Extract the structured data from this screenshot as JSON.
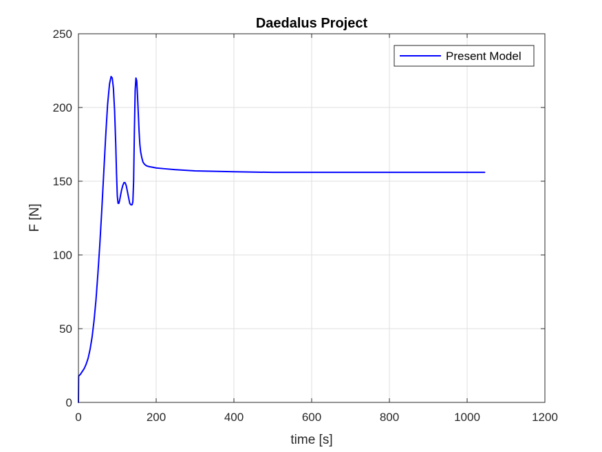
{
  "chart_data": {
    "type": "line",
    "title": "Daedalus Project",
    "xlabel": "time [s]",
    "ylabel": "F [N]",
    "xlim": [
      0,
      1200
    ],
    "ylim": [
      0,
      250
    ],
    "xticks": [
      0,
      200,
      400,
      600,
      800,
      1000,
      1200
    ],
    "yticks": [
      0,
      50,
      100,
      150,
      200,
      250
    ],
    "xtick_labels": [
      "0",
      "200",
      "400",
      "600",
      "800",
      "1000",
      "1200"
    ],
    "ytick_labels": [
      "0",
      "50",
      "100",
      "150",
      "200",
      "250"
    ],
    "grid": true,
    "legend_position": "top-right",
    "series": [
      {
        "name": "Present Model",
        "color": "#0000ff",
        "x": [
          0,
          0.5,
          1,
          5,
          10,
          15,
          20,
          25,
          30,
          35,
          40,
          45,
          50,
          55,
          60,
          65,
          70,
          75,
          80,
          84,
          87,
          90,
          93,
          96,
          98,
          100,
          102,
          104,
          106,
          108,
          111,
          114,
          117,
          120,
          123,
          126,
          129,
          132,
          135,
          138,
          140,
          142,
          144,
          146,
          148,
          150,
          152,
          154,
          156,
          158,
          160,
          163,
          166,
          170,
          175,
          180,
          190,
          200,
          220,
          250,
          300,
          350,
          400,
          450,
          500,
          600,
          700,
          800,
          900,
          1000,
          1045
        ],
        "y": [
          0,
          18,
          18,
          19,
          21,
          23,
          26,
          30,
          36,
          44,
          55,
          69,
          87,
          107,
          130,
          155,
          180,
          202,
          216,
          221,
          220,
          213,
          198,
          175,
          155,
          140,
          135,
          135,
          137,
          140,
          144,
          147,
          149,
          149,
          147,
          143,
          139,
          135,
          134,
          134,
          136,
          150,
          185,
          212,
          220,
          218,
          208,
          196,
          184,
          175,
          170,
          166,
          163,
          161.5,
          160.5,
          160,
          159.5,
          159,
          158.5,
          157.8,
          157,
          156.7,
          156.4,
          156.2,
          156,
          156,
          156,
          156,
          156,
          156,
          156
        ]
      }
    ]
  }
}
